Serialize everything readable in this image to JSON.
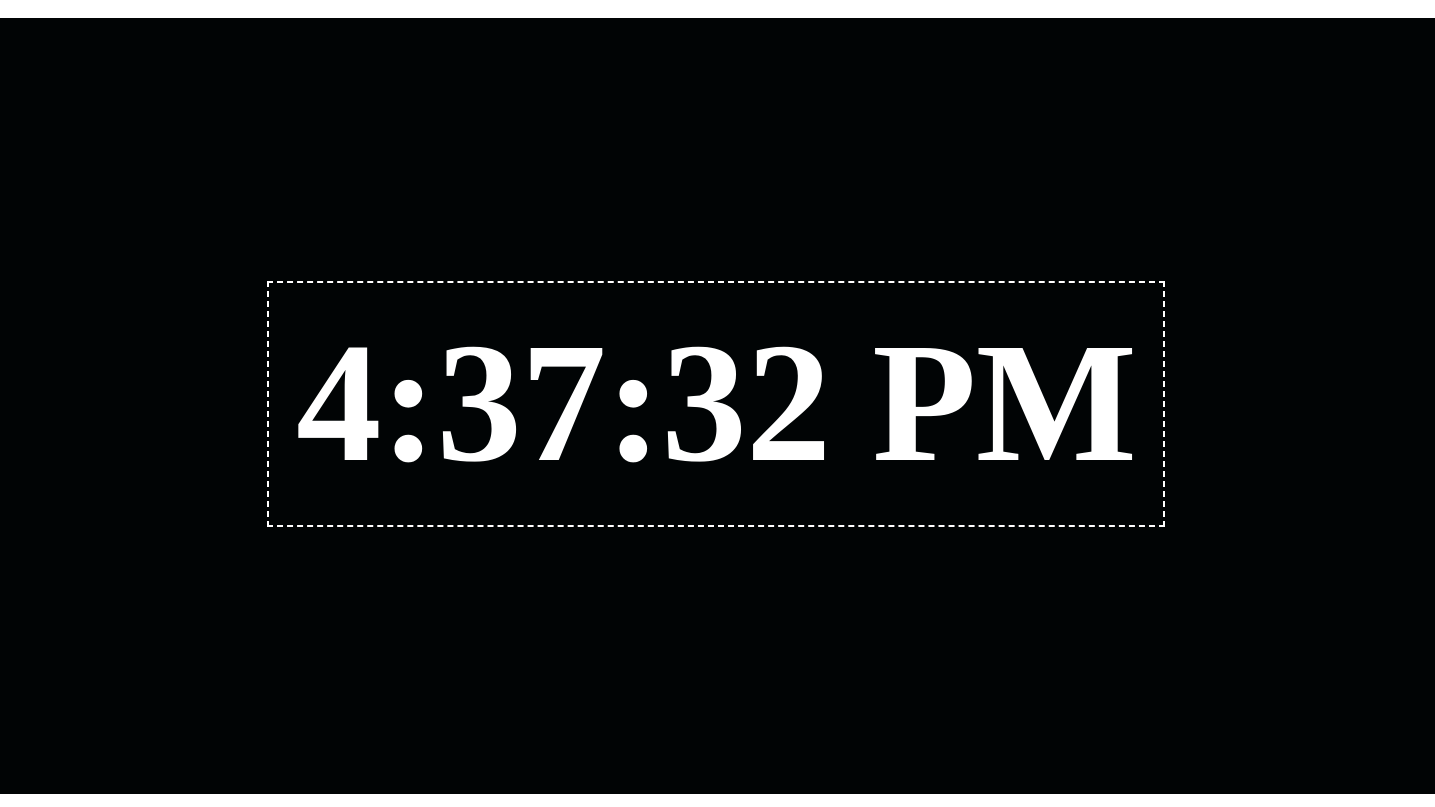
{
  "clock": {
    "time": "4:37:32 PM"
  },
  "colors": {
    "background": "#010405",
    "text": "#ffffff",
    "border": "#ffffff"
  }
}
